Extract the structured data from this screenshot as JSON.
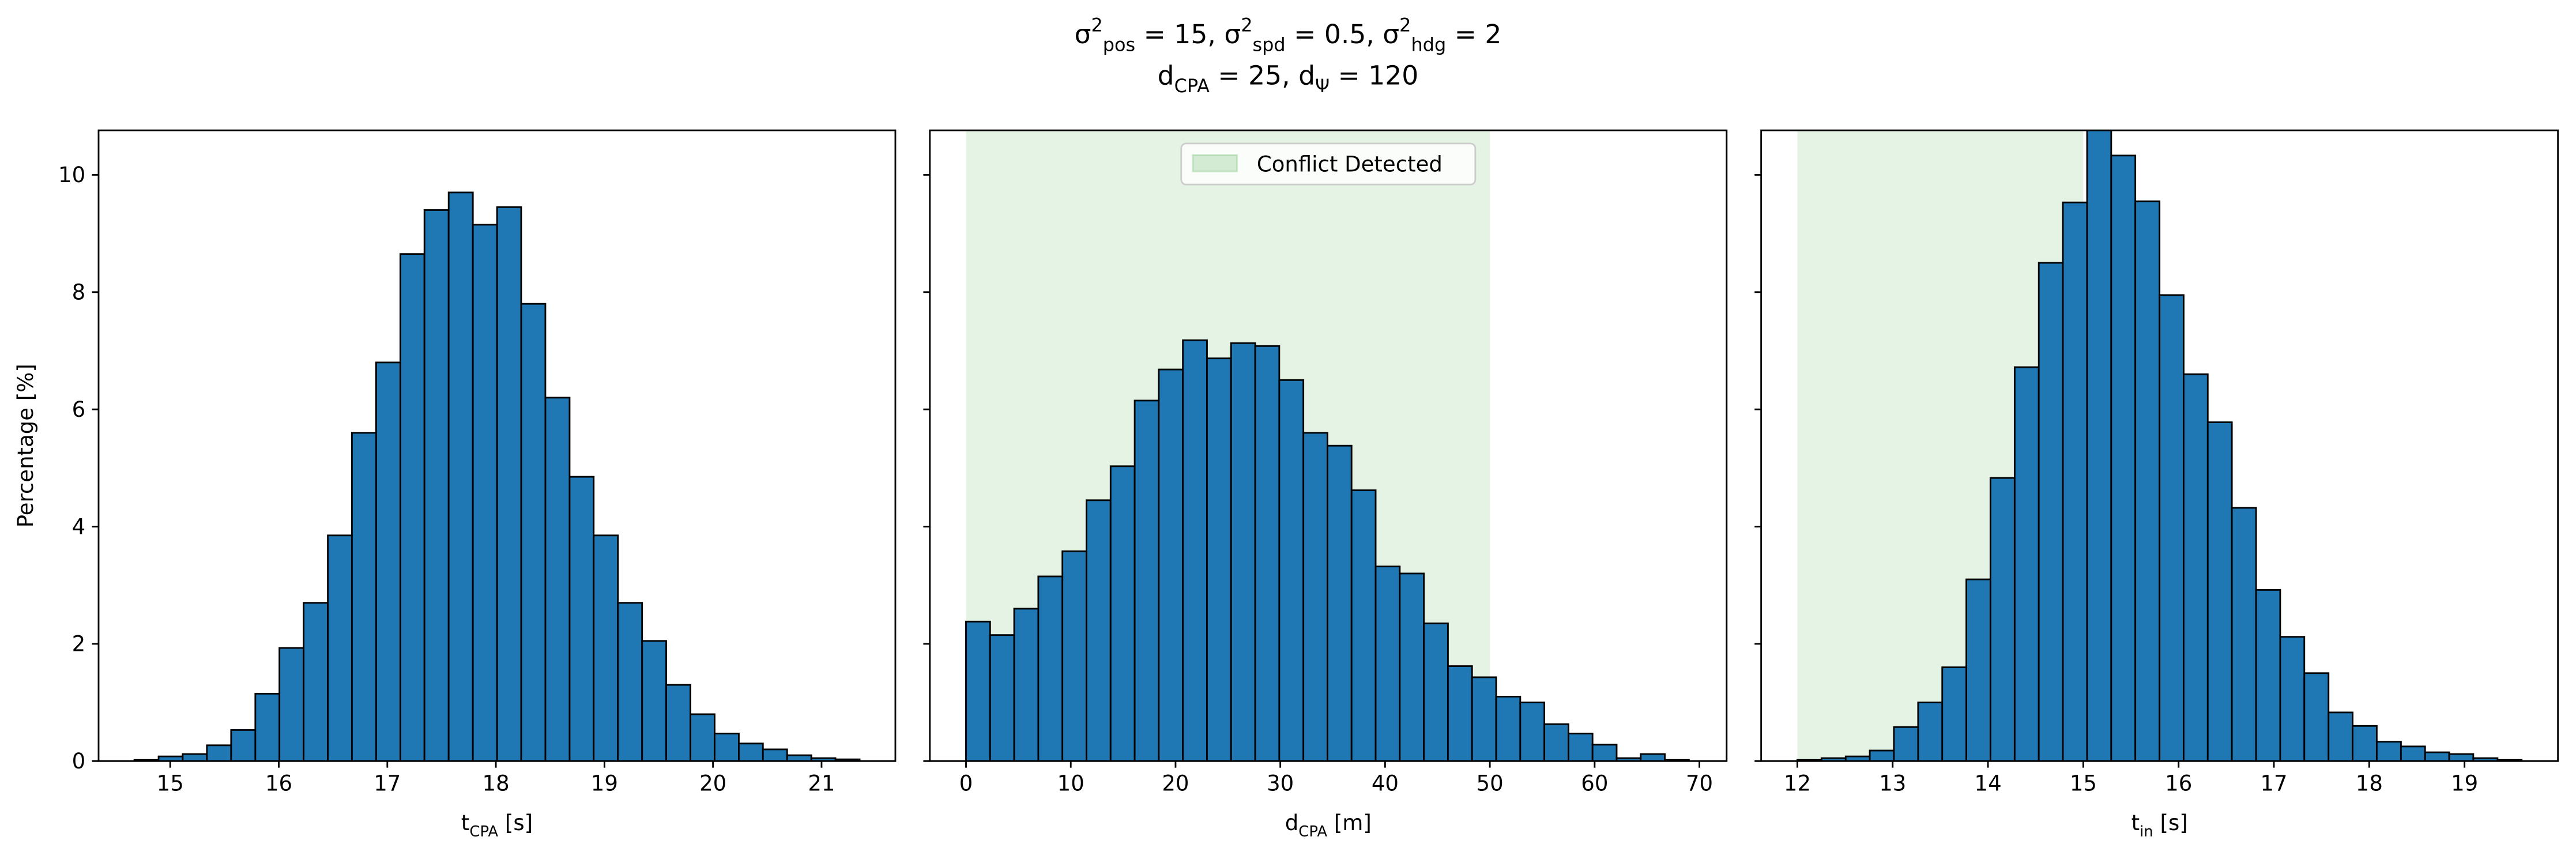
{
  "suptitle": [
    [
      {
        "text": "σ"
      },
      {
        "text": "2",
        "shift": "super"
      },
      {
        "text": "pos",
        "shift": "sub"
      },
      {
        "text": " = 15, σ"
      },
      {
        "text": "2",
        "shift": "super"
      },
      {
        "text": "spd",
        "shift": "sub"
      },
      {
        "text": " = 0.5, σ"
      },
      {
        "text": "2",
        "shift": "super"
      },
      {
        "text": "hdg",
        "shift": "sub"
      },
      {
        "text": " = 2"
      }
    ],
    [
      {
        "text": "d"
      },
      {
        "text": "CPA",
        "shift": "sub"
      },
      {
        "text": " = 25, d"
      },
      {
        "text": "Ψ",
        "shift": "sub"
      },
      {
        "text": " = 120"
      }
    ]
  ],
  "chart_data": [
    {
      "type": "histogram",
      "color": "#1f77b4",
      "edgecolor": "#000000",
      "bins": [
        14.67,
        14.893,
        15.115,
        15.338,
        15.561,
        15.784,
        16.006,
        16.229,
        16.452,
        16.674,
        16.897,
        17.12,
        17.342,
        17.565,
        17.788,
        18.011,
        18.233,
        18.456,
        18.679,
        18.901,
        19.124,
        19.347,
        19.569,
        19.792,
        20.015,
        20.238,
        20.46,
        20.683,
        20.906,
        21.128,
        21.351
      ],
      "values": [
        0.02,
        0.08,
        0.12,
        0.27,
        0.53,
        1.15,
        1.93,
        2.7,
        3.85,
        5.6,
        6.8,
        8.65,
        9.4,
        9.7,
        9.15,
        9.45,
        7.8,
        6.2,
        4.85,
        3.85,
        2.7,
        2.05,
        1.3,
        0.8,
        0.47,
        0.3,
        0.2,
        0.1,
        0.05,
        0.03
      ],
      "xlim": [
        14.34,
        21.68
      ],
      "xticks": [
        15,
        16,
        17,
        18,
        19,
        20,
        21
      ],
      "ylim": [
        0,
        10.76
      ],
      "yticks": [
        0,
        2,
        4,
        6,
        8,
        10
      ],
      "ytick_labels": true,
      "xlabel": [
        {
          "text": "t"
        },
        {
          "text": "CPA",
          "shift": "sub"
        },
        {
          "text": " [s]"
        }
      ],
      "ylabel": "Percentage [%]"
    },
    {
      "type": "histogram",
      "color": "#1f77b4",
      "edgecolor": "#000000",
      "bins": [
        0,
        2.3,
        4.6,
        6.9,
        9.2,
        11.5,
        13.8,
        16.1,
        18.4,
        20.7,
        23,
        25.3,
        27.6,
        29.9,
        32.2,
        34.5,
        36.8,
        39.1,
        41.4,
        43.7,
        46,
        48.3,
        50.6,
        52.9,
        55.2,
        57.5,
        59.8,
        62.1,
        64.4,
        66.7,
        69
      ],
      "values": [
        2.38,
        2.15,
        2.6,
        3.15,
        3.58,
        4.45,
        5.03,
        6.15,
        6.68,
        7.18,
        6.87,
        7.13,
        7.08,
        6.5,
        5.6,
        5.38,
        4.62,
        3.32,
        3.2,
        2.35,
        1.62,
        1.43,
        1.1,
        1.0,
        0.63,
        0.47,
        0.28,
        0.05,
        0.12,
        0.02
      ],
      "xlim": [
        -3.45,
        72.6
      ],
      "xticks": [
        0,
        10,
        20,
        30,
        40,
        50,
        60,
        70
      ],
      "ylim": [
        0,
        10.76
      ],
      "yticks": [
        0,
        2,
        4,
        6,
        8,
        10
      ],
      "ytick_labels": false,
      "xlabel": [
        {
          "text": "d"
        },
        {
          "text": "CPA",
          "shift": "sub"
        },
        {
          "text": " [m]"
        }
      ],
      "span": {
        "x": [
          0,
          50
        ],
        "color": "#2ca02c",
        "alpha": 0.12,
        "label": "Conflict Detected"
      },
      "legend": "upper center"
    },
    {
      "type": "histogram",
      "color": "#1f77b4",
      "edgecolor": "#000000",
      "bins": [
        12,
        12.253,
        12.507,
        12.76,
        13.013,
        13.267,
        13.52,
        13.773,
        14.026,
        14.28,
        14.533,
        14.786,
        15.04,
        15.293,
        15.546,
        15.8,
        16.053,
        16.306,
        16.559,
        16.813,
        17.066,
        17.319,
        17.573,
        17.826,
        18.079,
        18.333,
        18.586,
        18.839,
        19.092,
        19.346,
        19.599
      ],
      "values": [
        0.02,
        0.05,
        0.08,
        0.18,
        0.58,
        1.0,
        1.6,
        3.1,
        4.83,
        6.72,
        8.5,
        9.53,
        10.88,
        10.33,
        9.55,
        7.95,
        6.6,
        5.78,
        4.32,
        2.92,
        2.12,
        1.5,
        0.83,
        0.6,
        0.33,
        0.25,
        0.15,
        0.12,
        0.05,
        0.02
      ],
      "xlim": [
        11.62,
        19.98
      ],
      "xticks": [
        12,
        13,
        14,
        15,
        16,
        17,
        18,
        19
      ],
      "ylim": [
        0,
        10.76
      ],
      "yticks": [
        0,
        2,
        4,
        6,
        8,
        10
      ],
      "ytick_labels": false,
      "xlabel": [
        {
          "text": "t"
        },
        {
          "text": "in",
          "shift": "sub"
        },
        {
          "text": " [s]"
        }
      ],
      "span": {
        "x": [
          12,
          15
        ],
        "color": "#2ca02c",
        "alpha": 0.12
      }
    }
  ]
}
